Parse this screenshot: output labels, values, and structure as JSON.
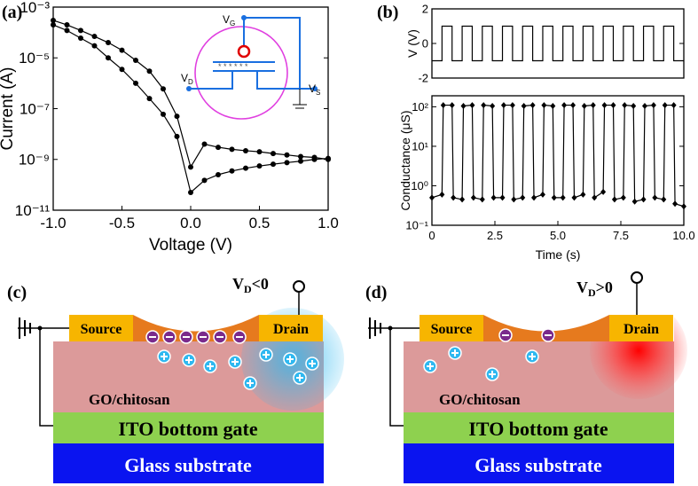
{
  "panel_labels": [
    "(a)",
    "(b)",
    "(c)",
    "(d)"
  ],
  "chart_data": [
    {
      "type": "line",
      "xlabel": "Voltage (V)",
      "ylabel": "Current (A)",
      "ylog": true,
      "xlim": [
        -1,
        1
      ],
      "ylim": [
        1e-11,
        0.001
      ],
      "xticks": [
        {
          "value": -1,
          "label": "-1.0"
        },
        {
          "value": -0.5,
          "label": "-0.5"
        },
        {
          "value": 0,
          "label": "0.0"
        },
        {
          "value": 0.5,
          "label": "0.5"
        },
        {
          "value": 1,
          "label": "1.0"
        }
      ],
      "yticks": [
        {
          "value": 1e-11,
          "label": "10⁻¹¹"
        },
        {
          "value": 1e-09,
          "label": "10⁻⁹"
        },
        {
          "value": 1e-07,
          "label": "10⁻⁷"
        },
        {
          "value": 1e-05,
          "label": "10⁻⁵"
        },
        {
          "value": 0.001,
          "label": "10⁻³"
        }
      ],
      "x": [
        -1,
        -0.9,
        -0.8,
        -0.7,
        -0.6,
        -0.5,
        -0.4,
        -0.3,
        -0.2,
        -0.1,
        0,
        0.1,
        0.2,
        0.3,
        0.4,
        0.5,
        0.6,
        0.7,
        0.8,
        0.9,
        1
      ],
      "series": [
        {
          "color": "#000000",
          "marker": "circle",
          "values": [
            0.0003,
            0.0002,
            0.00012,
            7e-05,
            4e-05,
            2e-05,
            8e-06,
            3e-06,
            6e-07,
            5e-08,
            5e-10,
            4e-09,
            3e-09,
            2.5e-09,
            2.2e-09,
            2e-09,
            1.7e-09,
            1.5e-09,
            1.3e-09,
            1.2e-09,
            1e-09
          ]
        },
        {
          "color": "#000000",
          "marker": "circle",
          "values": [
            0.0002,
            0.00012,
            6e-05,
            3e-05,
            1e-05,
            3.5e-06,
            1e-06,
            2.5e-07,
            6e-08,
            8e-09,
            5e-11,
            1.5e-10,
            2.5e-10,
            3.5e-10,
            4.5e-10,
            5.5e-10,
            6.5e-10,
            7.5e-10,
            8.5e-10,
            1e-09,
            1.1e-09
          ]
        }
      ]
    },
    {
      "type": "line",
      "ylabel": "V (V)",
      "xlim": [
        0,
        10
      ],
      "ylim": [
        -2,
        2
      ],
      "yticks": [
        -2,
        0,
        2
      ],
      "x": [
        0,
        0.4,
        0.4,
        0.8,
        0.8,
        1.2,
        1.2,
        1.6,
        1.6,
        2.0,
        2.0,
        2.4,
        2.4,
        2.8,
        2.8,
        3.2,
        3.2,
        3.6,
        3.6,
        4.0,
        4.0,
        4.4,
        4.4,
        4.8,
        4.8,
        5.2,
        5.2,
        5.6,
        5.6,
        6.0,
        6.0,
        6.4,
        6.4,
        6.8,
        6.8,
        7.2,
        7.2,
        7.6,
        7.6,
        8.0,
        8.0,
        8.4,
        8.4,
        8.8,
        8.8,
        9.2,
        9.2,
        9.6,
        9.6,
        10
      ],
      "series": [
        {
          "color": "#000000",
          "marker": "none",
          "values": [
            -1,
            -1,
            1,
            1,
            -1,
            -1,
            1,
            1,
            -1,
            -1,
            1,
            1,
            -1,
            -1,
            1,
            1,
            -1,
            -1,
            1,
            1,
            -1,
            -1,
            1,
            1,
            -1,
            -1,
            1,
            1,
            -1,
            -1,
            1,
            1,
            -1,
            -1,
            1,
            1,
            -1,
            -1,
            1,
            1,
            -1,
            -1,
            1,
            1,
            -1,
            -1,
            1,
            1,
            -1,
            -1
          ]
        }
      ]
    },
    {
      "type": "line",
      "xlabel": "Time (s)",
      "ylabel": "Conductance (μS)",
      "ylog": true,
      "xlim": [
        0,
        10
      ],
      "ylim": [
        0.1,
        190
      ],
      "xticks": [
        0,
        2.5,
        {
          "value": 5,
          "label": "5.0"
        },
        7.5,
        {
          "value": 10,
          "label": "10.0"
        }
      ],
      "yticks": [
        {
          "value": 0.1,
          "label": "10⁻¹"
        },
        {
          "value": 1,
          "label": "10⁰"
        },
        {
          "value": 10,
          "label": "10¹"
        },
        {
          "value": 100,
          "label": "10²"
        }
      ],
      "x": [
        0,
        0.4,
        0.45,
        0.8,
        0.85,
        1.2,
        1.25,
        1.6,
        1.65,
        2.0,
        2.05,
        2.4,
        2.45,
        2.8,
        2.85,
        3.2,
        3.25,
        3.6,
        3.65,
        4.0,
        4.05,
        4.4,
        4.45,
        4.8,
        4.85,
        5.2,
        5.25,
        5.6,
        5.65,
        6.0,
        6.05,
        6.4,
        6.45,
        6.8,
        6.85,
        7.2,
        7.25,
        7.6,
        7.65,
        8.0,
        8.05,
        8.4,
        8.45,
        8.8,
        8.85,
        9.2,
        9.25,
        9.6,
        9.65,
        10
      ],
      "series": [
        {
          "color": "#000000",
          "marker": "diamond",
          "values": [
            0.5,
            0.6,
            110,
            110,
            0.5,
            0.45,
            105,
            110,
            0.5,
            0.45,
            110,
            105,
            0.5,
            0.5,
            110,
            110,
            0.45,
            0.5,
            105,
            110,
            0.5,
            0.6,
            110,
            105,
            0.5,
            0.5,
            110,
            110,
            0.5,
            0.6,
            105,
            110,
            0.5,
            0.7,
            110,
            110,
            0.45,
            0.5,
            110,
            105,
            0.4,
            0.45,
            105,
            110,
            0.5,
            0.45,
            110,
            110,
            0.35,
            0.3
          ]
        }
      ]
    }
  ],
  "inset": {
    "gate": {
      "main": "V",
      "sub": "G"
    },
    "drain": {
      "main": "V",
      "sub": "D"
    },
    "source": {
      "main": "V",
      "sub": "S"
    }
  },
  "diagrams": [
    {
      "bias": {
        "main": "V",
        "sub": "D",
        "rest": "<0"
      },
      "source": "Source",
      "drain": "Drain",
      "layer": "GO/chitosan",
      "gate": "ITO bottom gate",
      "substrate": "Glass substrate"
    },
    {
      "bias": {
        "main": "V",
        "sub": "D",
        "rest": ">0"
      },
      "source": "Source",
      "drain": "Drain",
      "layer": "GO/chitosan",
      "gate": "ITO bottom gate",
      "substrate": "Glass substrate"
    }
  ]
}
